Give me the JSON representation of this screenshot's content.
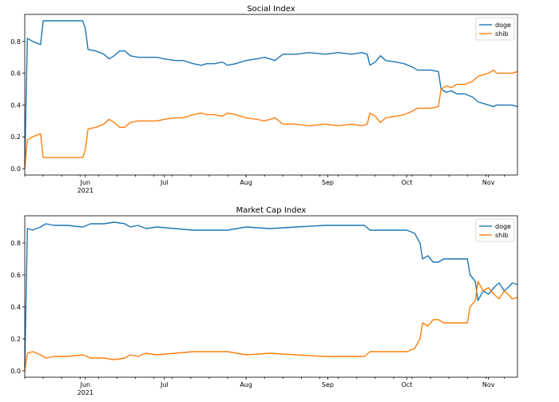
{
  "chart_data": [
    {
      "type": "line",
      "title": "Social Index",
      "ylim": [
        -0.04,
        0.97
      ],
      "yticks": [
        "0.0",
        "0.2",
        "0.4",
        "0.6",
        "0.8"
      ],
      "xticks": [
        {
          "date": "2021-06-01",
          "label": "Jun",
          "sublabel": "2021"
        },
        {
          "date": "2021-07-01",
          "label": "Jul"
        },
        {
          "date": "2021-08-01",
          "label": "Aug"
        },
        {
          "date": "2021-09-01",
          "label": "Sep"
        },
        {
          "date": "2021-10-01",
          "label": "Oct"
        },
        {
          "date": "2021-11-01",
          "label": "Nov"
        }
      ],
      "xlim": [
        "2021-05-09",
        "2021-11-12"
      ],
      "legend": "top-right",
      "series": [
        {
          "name": "doge",
          "color": "#1f77b4",
          "points": [
            [
              "2021-05-09",
              0.02
            ],
            [
              "2021-05-10",
              0.82
            ],
            [
              "2021-05-12",
              0.8
            ],
            [
              "2021-05-15",
              0.78
            ],
            [
              "2021-05-16",
              0.93
            ],
            [
              "2021-05-20",
              0.93
            ],
            [
              "2021-05-25",
              0.93
            ],
            [
              "2021-05-31",
              0.93
            ],
            [
              "2021-06-01",
              0.88
            ],
            [
              "2021-06-02",
              0.75
            ],
            [
              "2021-06-05",
              0.74
            ],
            [
              "2021-06-08",
              0.72
            ],
            [
              "2021-06-10",
              0.69
            ],
            [
              "2021-06-12",
              0.71
            ],
            [
              "2021-06-14",
              0.74
            ],
            [
              "2021-06-16",
              0.74
            ],
            [
              "2021-06-18",
              0.71
            ],
            [
              "2021-06-21",
              0.7
            ],
            [
              "2021-06-25",
              0.7
            ],
            [
              "2021-06-28",
              0.7
            ],
            [
              "2021-07-01",
              0.69
            ],
            [
              "2021-07-05",
              0.68
            ],
            [
              "2021-07-08",
              0.68
            ],
            [
              "2021-07-12",
              0.66
            ],
            [
              "2021-07-15",
              0.65
            ],
            [
              "2021-07-17",
              0.66
            ],
            [
              "2021-07-20",
              0.66
            ],
            [
              "2021-07-23",
              0.67
            ],
            [
              "2021-07-25",
              0.65
            ],
            [
              "2021-07-28",
              0.66
            ],
            [
              "2021-08-01",
              0.68
            ],
            [
              "2021-08-05",
              0.69
            ],
            [
              "2021-08-08",
              0.7
            ],
            [
              "2021-08-12",
              0.68
            ],
            [
              "2021-08-15",
              0.72
            ],
            [
              "2021-08-20",
              0.72
            ],
            [
              "2021-08-25",
              0.73
            ],
            [
              "2021-08-31",
              0.72
            ],
            [
              "2021-09-05",
              0.73
            ],
            [
              "2021-09-10",
              0.72
            ],
            [
              "2021-09-14",
              0.73
            ],
            [
              "2021-09-16",
              0.72
            ],
            [
              "2021-09-17",
              0.65
            ],
            [
              "2021-09-19",
              0.67
            ],
            [
              "2021-09-21",
              0.71
            ],
            [
              "2021-09-23",
              0.68
            ],
            [
              "2021-09-27",
              0.67
            ],
            [
              "2021-09-30",
              0.66
            ],
            [
              "2021-10-03",
              0.64
            ],
            [
              "2021-10-05",
              0.62
            ],
            [
              "2021-10-10",
              0.62
            ],
            [
              "2021-10-13",
              0.61
            ],
            [
              "2021-10-14",
              0.5
            ],
            [
              "2021-10-16",
              0.48
            ],
            [
              "2021-10-18",
              0.49
            ],
            [
              "2021-10-20",
              0.47
            ],
            [
              "2021-10-23",
              0.47
            ],
            [
              "2021-10-26",
              0.45
            ],
            [
              "2021-10-28",
              0.42
            ],
            [
              "2021-11-01",
              0.4
            ],
            [
              "2021-11-03",
              0.39
            ],
            [
              "2021-11-04",
              0.4
            ],
            [
              "2021-11-08",
              0.4
            ],
            [
              "2021-11-10",
              0.4
            ],
            [
              "2021-11-12",
              0.39
            ]
          ]
        },
        {
          "name": "shib",
          "color": "#ff7f0e",
          "points": [
            [
              "2021-05-09",
              0.0
            ],
            [
              "2021-05-10",
              0.18
            ],
            [
              "2021-05-12",
              0.2
            ],
            [
              "2021-05-15",
              0.22
            ],
            [
              "2021-05-16",
              0.07
            ],
            [
              "2021-05-20",
              0.07
            ],
            [
              "2021-05-25",
              0.07
            ],
            [
              "2021-05-31",
              0.07
            ],
            [
              "2021-06-01",
              0.12
            ],
            [
              "2021-06-02",
              0.25
            ],
            [
              "2021-06-05",
              0.26
            ],
            [
              "2021-06-08",
              0.28
            ],
            [
              "2021-06-10",
              0.31
            ],
            [
              "2021-06-12",
              0.29
            ],
            [
              "2021-06-14",
              0.26
            ],
            [
              "2021-06-16",
              0.26
            ],
            [
              "2021-06-18",
              0.29
            ],
            [
              "2021-06-21",
              0.3
            ],
            [
              "2021-06-25",
              0.3
            ],
            [
              "2021-06-28",
              0.3
            ],
            [
              "2021-07-01",
              0.31
            ],
            [
              "2021-07-05",
              0.32
            ],
            [
              "2021-07-08",
              0.32
            ],
            [
              "2021-07-12",
              0.34
            ],
            [
              "2021-07-15",
              0.35
            ],
            [
              "2021-07-17",
              0.34
            ],
            [
              "2021-07-20",
              0.34
            ],
            [
              "2021-07-23",
              0.33
            ],
            [
              "2021-07-25",
              0.35
            ],
            [
              "2021-07-28",
              0.34
            ],
            [
              "2021-08-01",
              0.32
            ],
            [
              "2021-08-05",
              0.31
            ],
            [
              "2021-08-08",
              0.3
            ],
            [
              "2021-08-12",
              0.32
            ],
            [
              "2021-08-15",
              0.28
            ],
            [
              "2021-08-20",
              0.28
            ],
            [
              "2021-08-25",
              0.27
            ],
            [
              "2021-08-31",
              0.28
            ],
            [
              "2021-09-05",
              0.27
            ],
            [
              "2021-09-10",
              0.28
            ],
            [
              "2021-09-14",
              0.27
            ],
            [
              "2021-09-16",
              0.28
            ],
            [
              "2021-09-17",
              0.35
            ],
            [
              "2021-09-19",
              0.33
            ],
            [
              "2021-09-21",
              0.29
            ],
            [
              "2021-09-23",
              0.32
            ],
            [
              "2021-09-27",
              0.33
            ],
            [
              "2021-09-30",
              0.34
            ],
            [
              "2021-10-03",
              0.36
            ],
            [
              "2021-10-05",
              0.38
            ],
            [
              "2021-10-10",
              0.38
            ],
            [
              "2021-10-13",
              0.39
            ],
            [
              "2021-10-14",
              0.5
            ],
            [
              "2021-10-16",
              0.52
            ],
            [
              "2021-10-18",
              0.51
            ],
            [
              "2021-10-20",
              0.53
            ],
            [
              "2021-10-23",
              0.53
            ],
            [
              "2021-10-26",
              0.55
            ],
            [
              "2021-10-28",
              0.58
            ],
            [
              "2021-11-01",
              0.6
            ],
            [
              "2021-11-03",
              0.62
            ],
            [
              "2021-11-04",
              0.6
            ],
            [
              "2021-11-08",
              0.6
            ],
            [
              "2021-11-10",
              0.6
            ],
            [
              "2021-11-12",
              0.61
            ]
          ]
        }
      ]
    },
    {
      "type": "line",
      "title": "Market Cap Index",
      "ylim": [
        -0.04,
        0.97
      ],
      "yticks": [
        "0.0",
        "0.2",
        "0.4",
        "0.6",
        "0.8"
      ],
      "xticks": [
        {
          "date": "2021-06-01",
          "label": "Jun",
          "sublabel": "2021"
        },
        {
          "date": "2021-07-01",
          "label": "Jul"
        },
        {
          "date": "2021-08-01",
          "label": "Aug"
        },
        {
          "date": "2021-09-01",
          "label": "Sep"
        },
        {
          "date": "2021-10-01",
          "label": "Oct"
        },
        {
          "date": "2021-11-01",
          "label": "Nov"
        }
      ],
      "xlim": [
        "2021-05-09",
        "2021-11-12"
      ],
      "legend": "top-right",
      "series": [
        {
          "name": "doge",
          "color": "#1f77b4",
          "points": [
            [
              "2021-05-09",
              0.02
            ],
            [
              "2021-05-10",
              0.89
            ],
            [
              "2021-05-12",
              0.88
            ],
            [
              "2021-05-15",
              0.9
            ],
            [
              "2021-05-17",
              0.92
            ],
            [
              "2021-05-20",
              0.91
            ],
            [
              "2021-05-25",
              0.91
            ],
            [
              "2021-05-31",
              0.9
            ],
            [
              "2021-06-03",
              0.92
            ],
            [
              "2021-06-08",
              0.92
            ],
            [
              "2021-06-12",
              0.93
            ],
            [
              "2021-06-16",
              0.92
            ],
            [
              "2021-06-18",
              0.9
            ],
            [
              "2021-06-21",
              0.91
            ],
            [
              "2021-06-24",
              0.89
            ],
            [
              "2021-06-28",
              0.9
            ],
            [
              "2021-07-05",
              0.89
            ],
            [
              "2021-07-12",
              0.88
            ],
            [
              "2021-07-18",
              0.88
            ],
            [
              "2021-07-25",
              0.88
            ],
            [
              "2021-08-01",
              0.9
            ],
            [
              "2021-08-10",
              0.89
            ],
            [
              "2021-08-20",
              0.9
            ],
            [
              "2021-08-31",
              0.91
            ],
            [
              "2021-09-10",
              0.91
            ],
            [
              "2021-09-15",
              0.91
            ],
            [
              "2021-09-17",
              0.88
            ],
            [
              "2021-09-22",
              0.88
            ],
            [
              "2021-09-28",
              0.88
            ],
            [
              "2021-10-01",
              0.88
            ],
            [
              "2021-10-04",
              0.86
            ],
            [
              "2021-10-06",
              0.8
            ],
            [
              "2021-10-07",
              0.7
            ],
            [
              "2021-10-09",
              0.72
            ],
            [
              "2021-10-11",
              0.68
            ],
            [
              "2021-10-13",
              0.68
            ],
            [
              "2021-10-15",
              0.7
            ],
            [
              "2021-10-18",
              0.7
            ],
            [
              "2021-10-21",
              0.7
            ],
            [
              "2021-10-24",
              0.7
            ],
            [
              "2021-10-25",
              0.6
            ],
            [
              "2021-10-27",
              0.56
            ],
            [
              "2021-10-28",
              0.44
            ],
            [
              "2021-10-30",
              0.5
            ],
            [
              "2021-11-01",
              0.48
            ],
            [
              "2021-11-03",
              0.52
            ],
            [
              "2021-11-05",
              0.55
            ],
            [
              "2021-11-07",
              0.5
            ],
            [
              "2021-11-09",
              0.53
            ],
            [
              "2021-11-10",
              0.55
            ],
            [
              "2021-11-12",
              0.54
            ]
          ]
        },
        {
          "name": "shib",
          "color": "#ff7f0e",
          "points": [
            [
              "2021-05-09",
              0.0
            ],
            [
              "2021-05-10",
              0.11
            ],
            [
              "2021-05-12",
              0.12
            ],
            [
              "2021-05-15",
              0.1
            ],
            [
              "2021-05-17",
              0.08
            ],
            [
              "2021-05-20",
              0.09
            ],
            [
              "2021-05-25",
              0.09
            ],
            [
              "2021-05-31",
              0.1
            ],
            [
              "2021-06-03",
              0.08
            ],
            [
              "2021-06-08",
              0.08
            ],
            [
              "2021-06-12",
              0.07
            ],
            [
              "2021-06-16",
              0.08
            ],
            [
              "2021-06-18",
              0.1
            ],
            [
              "2021-06-21",
              0.09
            ],
            [
              "2021-06-24",
              0.11
            ],
            [
              "2021-06-28",
              0.1
            ],
            [
              "2021-07-05",
              0.11
            ],
            [
              "2021-07-12",
              0.12
            ],
            [
              "2021-07-18",
              0.12
            ],
            [
              "2021-07-25",
              0.12
            ],
            [
              "2021-08-01",
              0.1
            ],
            [
              "2021-08-10",
              0.11
            ],
            [
              "2021-08-20",
              0.1
            ],
            [
              "2021-08-31",
              0.09
            ],
            [
              "2021-09-10",
              0.09
            ],
            [
              "2021-09-15",
              0.09
            ],
            [
              "2021-09-17",
              0.12
            ],
            [
              "2021-09-22",
              0.12
            ],
            [
              "2021-09-28",
              0.12
            ],
            [
              "2021-10-01",
              0.12
            ],
            [
              "2021-10-04",
              0.14
            ],
            [
              "2021-10-06",
              0.2
            ],
            [
              "2021-10-07",
              0.3
            ],
            [
              "2021-10-09",
              0.28
            ],
            [
              "2021-10-11",
              0.32
            ],
            [
              "2021-10-13",
              0.32
            ],
            [
              "2021-10-15",
              0.3
            ],
            [
              "2021-10-18",
              0.3
            ],
            [
              "2021-10-21",
              0.3
            ],
            [
              "2021-10-24",
              0.3
            ],
            [
              "2021-10-25",
              0.4
            ],
            [
              "2021-10-27",
              0.44
            ],
            [
              "2021-10-28",
              0.56
            ],
            [
              "2021-10-30",
              0.5
            ],
            [
              "2021-11-01",
              0.52
            ],
            [
              "2021-11-03",
              0.48
            ],
            [
              "2021-11-05",
              0.45
            ],
            [
              "2021-11-07",
              0.5
            ],
            [
              "2021-11-09",
              0.47
            ],
            [
              "2021-11-10",
              0.45
            ],
            [
              "2021-11-12",
              0.46
            ]
          ]
        }
      ]
    }
  ]
}
